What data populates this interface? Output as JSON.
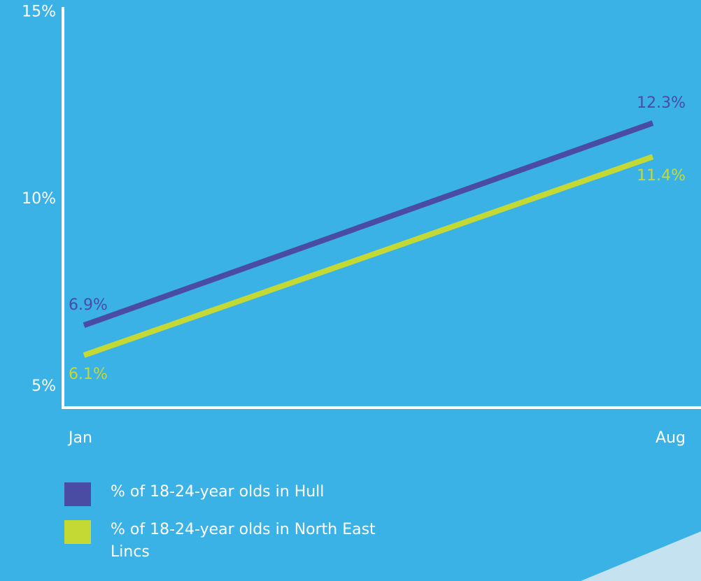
{
  "chart_data": {
    "type": "line",
    "categories": [
      "Jan",
      "Aug"
    ],
    "series": [
      {
        "name": "% of 18-24-year olds in Hull",
        "color": "#4a4ba2",
        "values": [
          6.9,
          12.3
        ],
        "value_labels": [
          "6.9%",
          "12.3%"
        ]
      },
      {
        "name": "% of 18-24-year olds in North East Lincs",
        "color": "#c5d935",
        "values": [
          6.1,
          11.4
        ],
        "value_labels": [
          "6.1%",
          "11.4%"
        ]
      }
    ],
    "ylim": [
      4.7,
      15.4
    ],
    "yticks": [
      {
        "value": 5,
        "label": "5%"
      },
      {
        "value": 10,
        "label": "10%"
      },
      {
        "value": 15,
        "label": "15%"
      }
    ],
    "grid": false
  }
}
